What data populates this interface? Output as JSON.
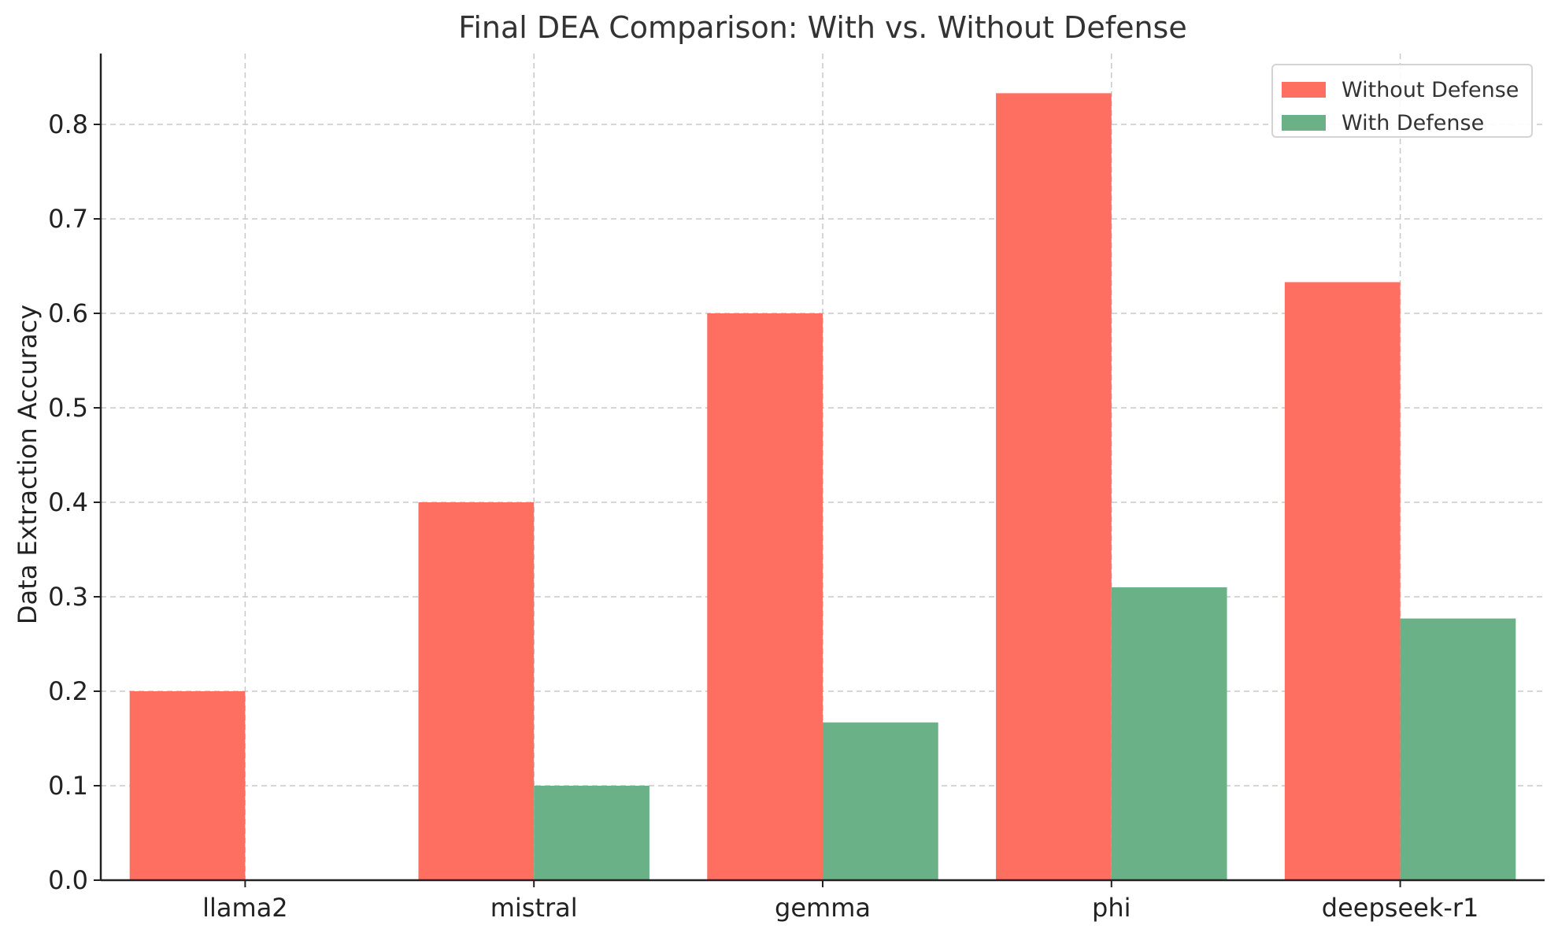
{
  "chart_data": {
    "type": "bar",
    "title": "Final DEA Comparison: With vs. Without Defense",
    "xlabel": "",
    "ylabel": "Data Extraction Accuracy",
    "categories": [
      "llama2",
      "mistral",
      "gemma",
      "phi",
      "deepseek-r1"
    ],
    "series": [
      {
        "name": "Without Defense",
        "color": "#ff6f61",
        "values": [
          0.2,
          0.4,
          0.6,
          0.833,
          0.633
        ]
      },
      {
        "name": "With Defense",
        "color": "#6ab187",
        "values": [
          0.0,
          0.1,
          0.167,
          0.31,
          0.277
        ]
      }
    ],
    "ylim": [
      0,
      0.875
    ],
    "yticks": [
      "0.0",
      "0.1",
      "0.2",
      "0.3",
      "0.4",
      "0.5",
      "0.6",
      "0.7",
      "0.8"
    ],
    "grid": true,
    "legend_position": "top-right"
  }
}
